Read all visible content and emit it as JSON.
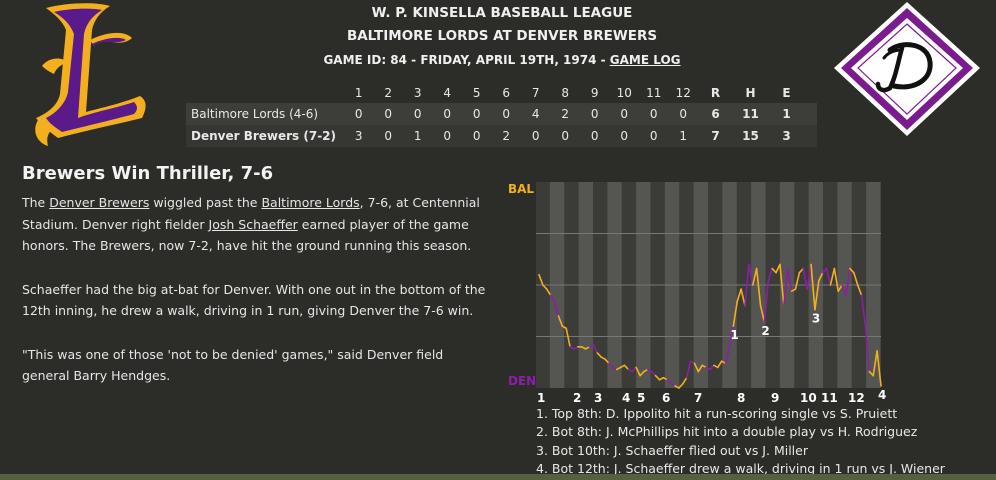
{
  "header": {
    "league": "W. P. KINSELLA BASEBALL LEAGUE",
    "matchup": "BALTIMORE LORDS AT DENVER BREWERS",
    "game_info": "GAME ID: 84 - FRIDAY, APRIL 19TH, 1974 - ",
    "game_log_link": "GAME LOG"
  },
  "logos": {
    "away_letter": "L",
    "home_letter": "D",
    "away_colors": [
      "#5a1a8a",
      "#f2b01e"
    ],
    "home_colors": [
      "#7a1c8e",
      "#ffffff",
      "#000000"
    ]
  },
  "linescore": {
    "headers": [
      "1",
      "2",
      "3",
      "4",
      "5",
      "6",
      "7",
      "8",
      "9",
      "10",
      "11",
      "12",
      "R",
      "H",
      "E"
    ],
    "rows": [
      {
        "team": "Baltimore Lords (4-6)",
        "innings": [
          "0",
          "0",
          "0",
          "0",
          "0",
          "0",
          "4",
          "2",
          "0",
          "0",
          "0",
          "0"
        ],
        "r": "6",
        "h": "11",
        "e": "1"
      },
      {
        "team": "Denver Brewers (7-2)",
        "innings": [
          "3",
          "0",
          "1",
          "0",
          "0",
          "2",
          "0",
          "0",
          "0",
          "0",
          "0",
          "1"
        ],
        "r": "7",
        "h": "15",
        "e": "3"
      }
    ]
  },
  "story": {
    "headline": "Brewers Win Thriller, 7-6",
    "p1": [
      "The ",
      "Denver Brewers",
      " wiggled past the ",
      "Baltimore Lords",
      ", 7-6, at Centennial Stadium. Denver right fielder ",
      "Josh Schaeffer",
      " earned player of the game honors. The Brewers, now 7-2, have hit the ground running this season."
    ],
    "p2": "Schaeffer had the big at-bat for Denver. With one out in the bottom of the 12th inning, he drew a walk, driving in 1 run, giving Denver the 7-6 win.",
    "p3": "\"This was one of those 'not to be denied' games,\" said Denver field general Barry Hendges."
  },
  "chart_data": {
    "type": "line",
    "top_label": "BAL",
    "bottom_label": "DEN",
    "top_color": "#f2b01e",
    "bottom_color": "#8b1fa6",
    "innings": [
      "1",
      "2",
      "3",
      "4",
      "5",
      "6",
      "7",
      "8",
      "9",
      "10",
      "11",
      "12"
    ],
    "ylim": [
      0,
      1
    ],
    "y": [
      0.55,
      0.5,
      0.48,
      0.45,
      0.42,
      0.35,
      0.3,
      0.29,
      0.2,
      0.19,
      0.2,
      0.2,
      0.19,
      0.2,
      0.21,
      0.17,
      0.15,
      0.14,
      0.12,
      0.1,
      0.09,
      0.1,
      0.11,
      0.09,
      0.08,
      0.1,
      0.06,
      0.08,
      0.09,
      0.08,
      0.06,
      0.04,
      0.05,
      0.04,
      0.02,
      0.01,
      0.0,
      0.02,
      0.05,
      0.13,
      0.12,
      0.08,
      0.11,
      0.1,
      0.09,
      0.11,
      0.1,
      0.13,
      0.12,
      0.2,
      0.3,
      0.42,
      0.48,
      0.4,
      0.6,
      0.5,
      0.58,
      0.4,
      0.32,
      0.52,
      0.58,
      0.56,
      0.6,
      0.4,
      0.58,
      0.47,
      0.48,
      0.56,
      0.58,
      0.48,
      0.6,
      0.38,
      0.52,
      0.56,
      0.58,
      0.5,
      0.58,
      0.47,
      0.5,
      0.45,
      0.58,
      0.56,
      0.5,
      0.45,
      0.3,
      0.08,
      0.06,
      0.18,
      0.01
    ],
    "markers": [
      {
        "label": "1",
        "index": 50
      },
      {
        "label": "2",
        "index": 58
      },
      {
        "label": "3",
        "index": 71
      },
      {
        "label": "4",
        "index": 88
      }
    ],
    "notes": [
      "1. Top 8th: D. Ippolito hit a run-scoring single vs S. Pruiett",
      "2. Bot 8th: J. McPhillips hit into a double play vs H. Rodriguez",
      "3. Bot 10th: J. Schaeffer flied out vs J. Miller",
      "4. Bot 12th: J. Schaeffer drew a walk, driving in 1 run vs J. Wiener"
    ]
  }
}
